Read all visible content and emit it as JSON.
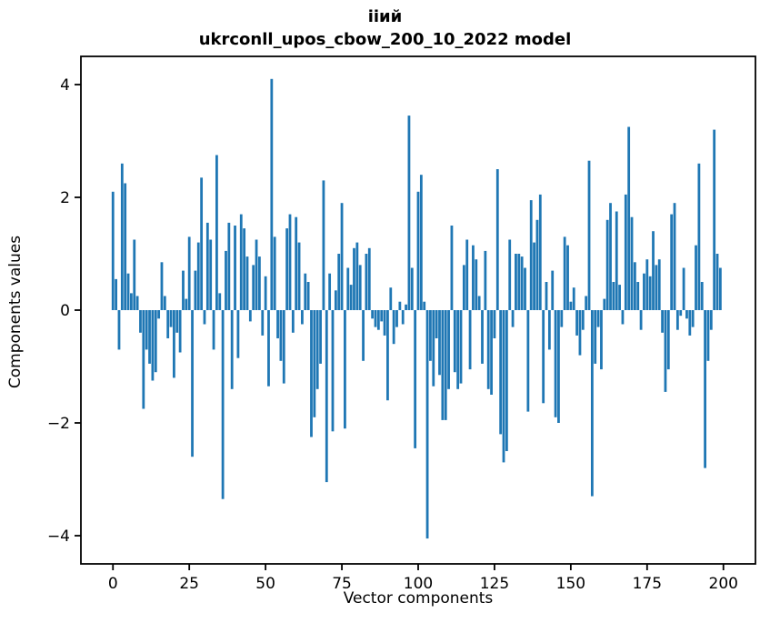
{
  "title": {
    "line1": "ііий",
    "line2": "ukrconll_upos_cbow_200_10_2022 model"
  },
  "axes": {
    "xlabel": "Vector components",
    "ylabel": "Components values"
  },
  "chart_data": {
    "type": "bar",
    "title": "ііий\nukrconll_upos_cbow_200_10_2022 model",
    "xlabel": "Vector components",
    "ylabel": "Components values",
    "bar_color": "#1f77b4",
    "x_ticks": [
      0,
      25,
      50,
      75,
      100,
      125,
      150,
      175,
      200
    ],
    "y_ticks": [
      -4,
      -2,
      0,
      2,
      4
    ],
    "xlim": [
      -10.5,
      210.5
    ],
    "ylim": [
      -4.5,
      4.5
    ],
    "grid": false,
    "legend": "none",
    "n_points": 200,
    "x": "0..199 (vector component index)",
    "values": [
      2.1,
      0.55,
      -0.7,
      2.6,
      2.25,
      0.65,
      0.3,
      1.25,
      0.25,
      -0.4,
      -1.75,
      -0.7,
      -0.95,
      -1.25,
      -1.1,
      -0.15,
      0.85,
      0.25,
      -0.5,
      -0.3,
      -1.2,
      -0.4,
      -0.75,
      0.7,
      0.2,
      1.3,
      -2.6,
      0.7,
      1.2,
      2.35,
      -0.25,
      1.55,
      1.25,
      -0.7,
      2.75,
      0.3,
      -3.35,
      1.05,
      1.55,
      -1.4,
      1.5,
      -0.85,
      1.7,
      1.45,
      0.95,
      -0.2,
      0.8,
      1.25,
      0.95,
      -0.45,
      0.6,
      -1.35,
      4.1,
      1.3,
      -0.5,
      -0.9,
      -1.3,
      1.45,
      1.7,
      -0.4,
      1.65,
      1.2,
      -0.25,
      0.65,
      0.5,
      -2.25,
      -1.9,
      -1.4,
      -0.95,
      2.3,
      -3.05,
      0.65,
      -2.15,
      0.35,
      1.0,
      1.9,
      -2.1,
      0.75,
      0.45,
      1.1,
      1.2,
      0.8,
      -0.9,
      1.0,
      1.1,
      -0.15,
      -0.3,
      -0.35,
      -0.2,
      -0.45,
      -1.6,
      0.4,
      -0.6,
      -0.3,
      0.15,
      -0.25,
      0.1,
      3.45,
      0.75,
      -2.45,
      2.1,
      2.4,
      0.15,
      -4.05,
      -0.9,
      -1.35,
      -0.5,
      -1.15,
      -1.95,
      -1.95,
      -1.4,
      1.5,
      -1.1,
      -1.4,
      -1.3,
      0.8,
      1.25,
      -1.05,
      1.15,
      0.9,
      0.25,
      -0.95,
      1.05,
      -1.4,
      -1.5,
      -0.5,
      2.5,
      -2.2,
      -2.7,
      -2.5,
      1.25,
      -0.3,
      1.0,
      1.0,
      0.95,
      0.75,
      -1.8,
      1.95,
      1.2,
      1.6,
      2.05,
      -1.65,
      0.5,
      -0.7,
      0.7,
      -1.9,
      -2.0,
      -0.3,
      1.3,
      1.15,
      0.15,
      0.4,
      -0.45,
      -0.8,
      -0.35,
      0.25,
      2.65,
      -3.3,
      -0.95,
      -0.3,
      -1.05,
      0.2,
      1.6,
      1.9,
      0.5,
      1.75,
      0.45,
      -0.25,
      2.05,
      3.25,
      1.65,
      0.85,
      0.5,
      -0.35,
      0.65,
      0.9,
      0.6,
      1.4,
      0.8,
      0.9,
      -0.4,
      -1.45,
      -1.05,
      1.7,
      1.9,
      -0.35,
      -0.1,
      0.75,
      -0.15,
      -0.45,
      -0.3,
      1.15,
      2.6,
      0.5,
      -2.8,
      -0.9,
      -0.35,
      3.2,
      1.0,
      0.75
    ]
  }
}
